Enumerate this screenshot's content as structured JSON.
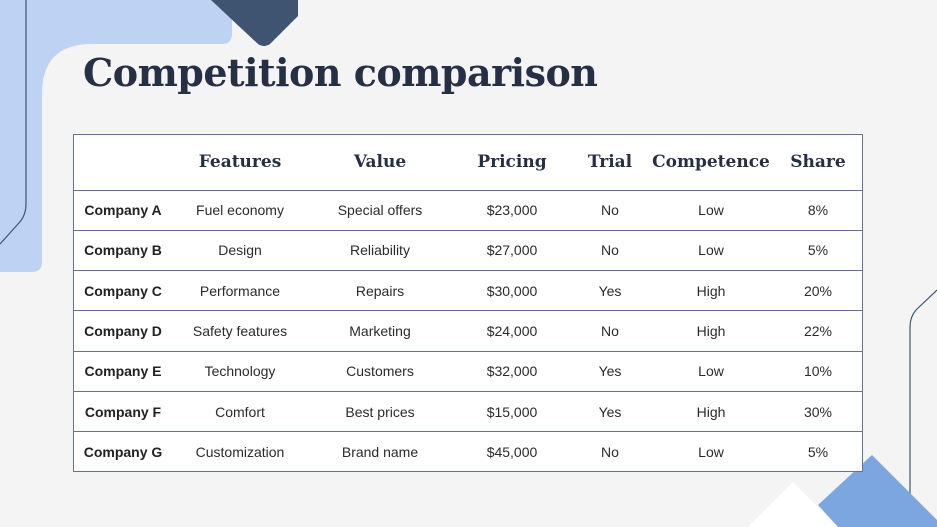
{
  "slide": {
    "title": "Competition comparison"
  },
  "theme": {
    "accent_light": "#bed2f3",
    "accent_mid": "#7ba6e0",
    "accent_dark": "#3e5470",
    "line": "#5f7591",
    "title_color": "#253044"
  },
  "table": {
    "columns": [
      "",
      "Features",
      "Value",
      "Pricing",
      "Trial",
      "Competence",
      "Share"
    ],
    "rows": [
      [
        "Company A",
        "Fuel economy",
        "Special offers",
        "$23,000",
        "No",
        "Low",
        "8%"
      ],
      [
        "Company B",
        "Design",
        "Reliability",
        "$27,000",
        "No",
        "Low",
        "5%"
      ],
      [
        "Company C",
        "Performance",
        "Repairs",
        "$30,000",
        "Yes",
        "High",
        "20%"
      ],
      [
        "Company D",
        "Safety features",
        "Marketing",
        "$24,000",
        "No",
        "High",
        "22%"
      ],
      [
        "Company E",
        "Technology",
        "Customers",
        "$32,000",
        "Yes",
        "Low",
        "10%"
      ],
      [
        "Company F",
        "Comfort",
        "Best prices",
        "$15,000",
        "Yes",
        "High",
        "30%"
      ],
      [
        "Company G",
        "Customization",
        "Brand name",
        "$45,000",
        "No",
        "Low",
        "5%"
      ]
    ]
  }
}
